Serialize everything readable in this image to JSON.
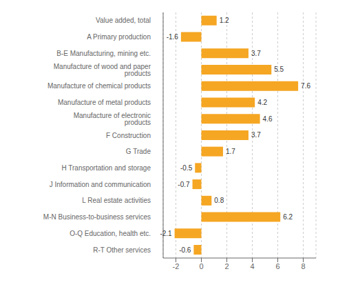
{
  "chart_data": {
    "type": "bar",
    "orientation": "horizontal",
    "categories": [
      "Value added, total",
      "A Primary production",
      "B-E Manufacturing, mining etc.",
      "Manufacture of wood and paper products",
      "Manufacture of chemical products",
      "Manufacture of metal products",
      "Manufacture of electronic products",
      "F Construction",
      "G Trade",
      "H Transportation and storage",
      "J Information and communication",
      "L Real estate activities",
      "M-N Business-to-business services",
      "O-Q Education, health etc.",
      "R-T Other services"
    ],
    "values": [
      1.2,
      -1.6,
      3.7,
      5.5,
      7.6,
      4.2,
      4.6,
      3.7,
      1.7,
      -0.5,
      -0.7,
      0.8,
      6.2,
      -2.1,
      -0.6
    ],
    "color": "#f5a623",
    "xlim": [
      -3,
      9
    ],
    "xticks": [
      -2,
      0,
      2,
      4,
      6,
      8
    ],
    "grid": true,
    "data_labels": true
  }
}
